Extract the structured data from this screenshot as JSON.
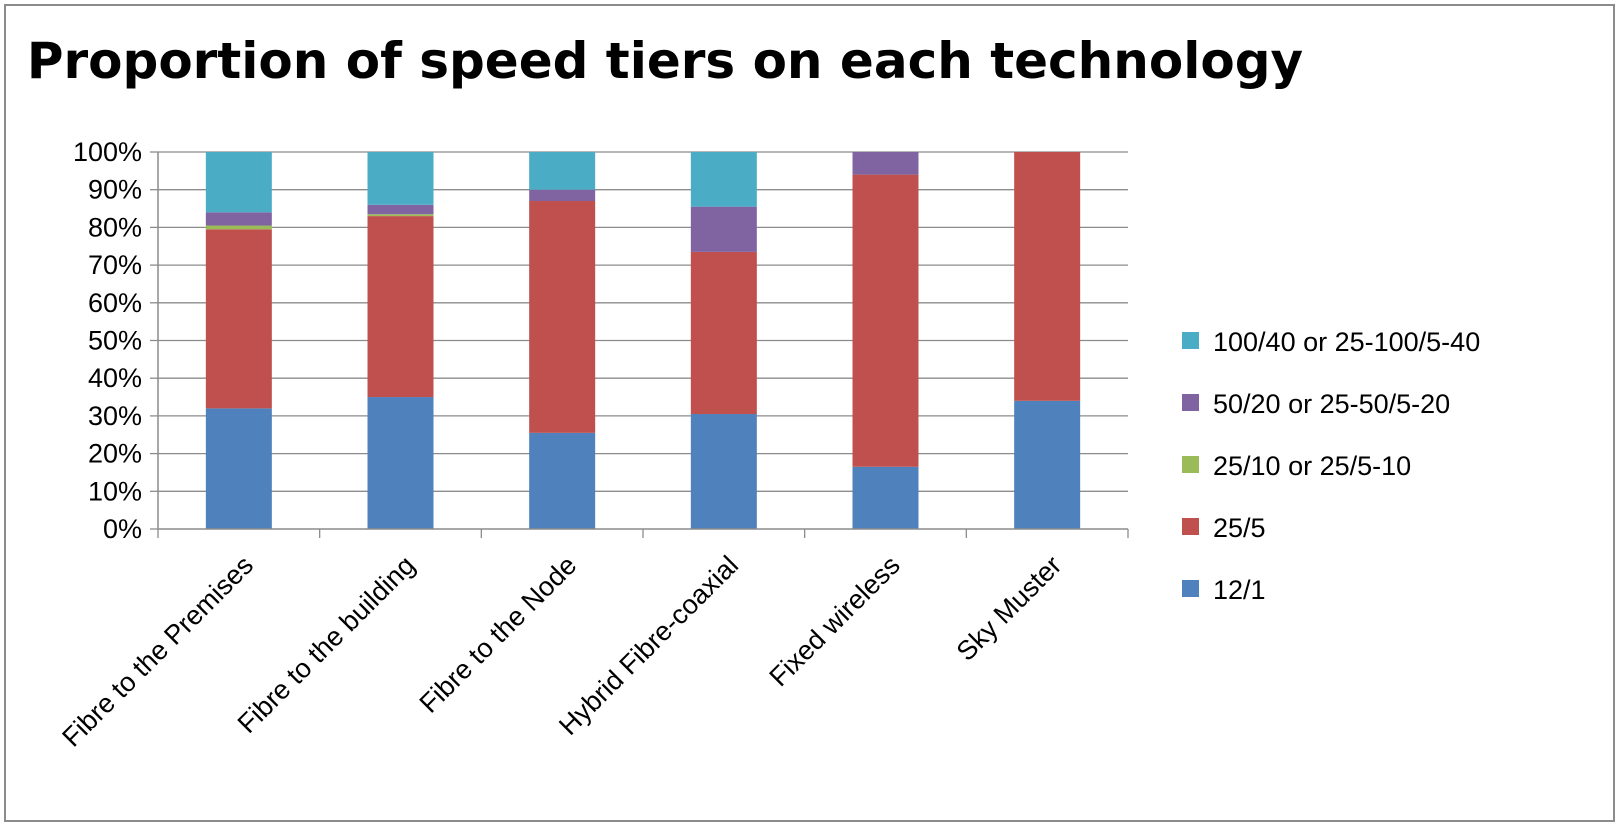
{
  "chart_data": {
    "type": "bar",
    "stacked": true,
    "title": "Proportion of speed tiers on each technology",
    "xlabel": "",
    "ylabel": "",
    "ylim": [
      0,
      100
    ],
    "y_ticks": [
      "0%",
      "10%",
      "20%",
      "30%",
      "40%",
      "50%",
      "60%",
      "70%",
      "80%",
      "90%",
      "100%"
    ],
    "grid": "horizontal",
    "legend_position": "right",
    "categories": [
      "Fibre to the Premises",
      "Fibre to the building",
      "Fibre to the Node",
      "Hybrid Fibre-coaxial",
      "Fixed wireless",
      "Sky Muster"
    ],
    "series": [
      {
        "name": "12/1",
        "color": "#4f81bd",
        "values": [
          32,
          35,
          25.5,
          30.5,
          16.5,
          34
        ]
      },
      {
        "name": "25/5",
        "color": "#c0504d",
        "values": [
          47.5,
          48,
          61.5,
          43,
          77.5,
          66
        ]
      },
      {
        "name": "25/10 or 25/5-10",
        "color": "#9bbb59",
        "values": [
          1,
          0.5,
          0,
          0,
          0,
          0
        ]
      },
      {
        "name": "50/20 or 25-50/5-20",
        "color": "#8064a2",
        "values": [
          3.5,
          2.5,
          3,
          12,
          6,
          0
        ]
      },
      {
        "name": "100/40 or 25-100/5-40",
        "color": "#4bacc6",
        "values": [
          16,
          14,
          10,
          14.5,
          0,
          0
        ]
      }
    ],
    "legend_order": [
      "100/40 or 25-100/5-40",
      "50/20 or 25-50/5-20",
      "25/10 or 25/5-10",
      "25/5",
      "12/1"
    ]
  }
}
